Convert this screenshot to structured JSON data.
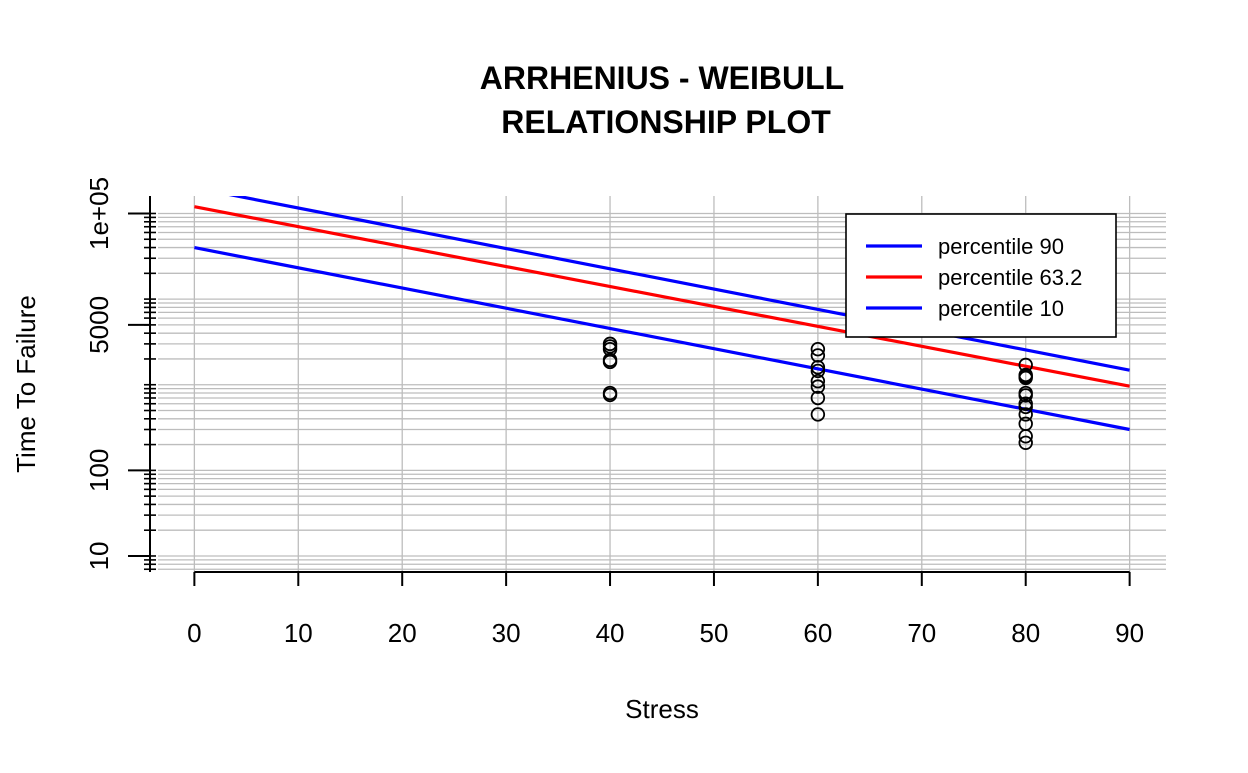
{
  "chart_data": {
    "type": "scatter",
    "title_lines": [
      "ARRHENIUS - WEIBULL",
      "RELATIONSHIP PLOT"
    ],
    "xlabel": "Stress",
    "ylabel": "Time To Failure",
    "x_scale": "linear",
    "y_scale": "log10",
    "xlim": [
      -3.5,
      93.5
    ],
    "ylim": [
      6.5,
      160000
    ],
    "x_ticks": [
      0,
      10,
      20,
      30,
      40,
      50,
      60,
      70,
      80,
      90
    ],
    "y_tick_labels": [
      {
        "value": 10,
        "label": "10"
      },
      {
        "value": 100,
        "label": "100"
      },
      {
        "value": 5000,
        "label": "5000"
      },
      {
        "value": 100000,
        "label": "1e+05"
      }
    ],
    "grid": true,
    "legend_position": "top-right",
    "series": [
      {
        "name": "percentile 90",
        "kind": "line",
        "color": "#0000ff",
        "x": [
          0,
          90
        ],
        "y": [
          200000,
          1480
        ]
      },
      {
        "name": "percentile 63.2",
        "kind": "line",
        "color": "#ff0000",
        "x": [
          0,
          90
        ],
        "y": [
          120000,
          960
        ]
      },
      {
        "name": "percentile 10",
        "kind": "line",
        "color": "#0000ff",
        "x": [
          0,
          90
        ],
        "y": [
          40000,
          300
        ]
      }
    ],
    "points": {
      "marker": "open-circle",
      "color": "#000000",
      "x": [
        40,
        40,
        40,
        40,
        40,
        40,
        40,
        60,
        60,
        60,
        60,
        60,
        60,
        60,
        60,
        80,
        80,
        80,
        80,
        80,
        80,
        80,
        80,
        80,
        80,
        80,
        80
      ],
      "y": [
        3000,
        2800,
        2600,
        1950,
        1850,
        800,
        760,
        2600,
        2200,
        1600,
        1450,
        1100,
        950,
        700,
        450,
        1700,
        1300,
        1250,
        1200,
        800,
        750,
        600,
        550,
        450,
        350,
        250,
        210
      ]
    }
  }
}
